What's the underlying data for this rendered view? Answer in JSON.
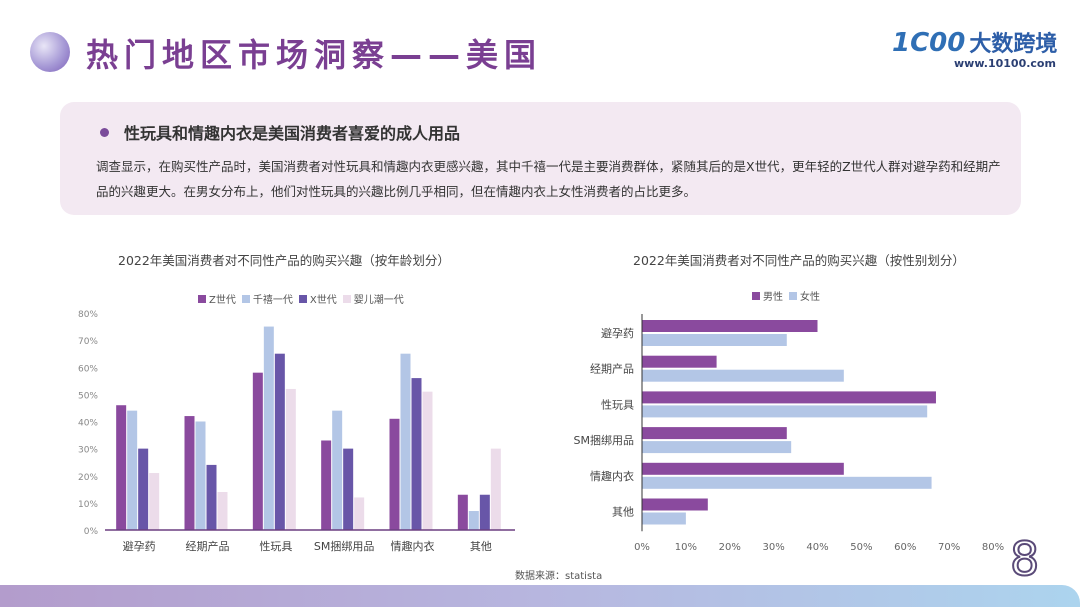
{
  "header": {
    "title": "热门地区市场洞察——美国",
    "logo_mark": "1C00",
    "logo_name": "大数跨境",
    "logo_url": "www.10100.com"
  },
  "insight": {
    "heading": "性玩具和情趣内衣是美国消费者喜爱的成人用品",
    "body": "调查显示，在购买性产品时，美国消费者对性玩具和情趣内衣更感兴趣，其中千禧一代是主要消费群体，紧随其后的是X世代，更年轻的Z世代人群对避孕药和经期产品的兴趣更大。在男女分布上，他们对性玩具的兴趣比例几乎相同，但在情趣内衣上女性消费者的占比更多。"
  },
  "chart_data": [
    {
      "type": "bar",
      "title": "2022年美国消费者对不同性产品的购买兴趣（按年龄划分）",
      "categories": [
        "避孕药",
        "经期产品",
        "性玩具",
        "SM捆绑用品",
        "情趣内衣",
        "其他"
      ],
      "series": [
        {
          "name": "Z世代",
          "color": "#8a4a9e",
          "values": [
            46,
            42,
            58,
            33,
            41,
            13
          ]
        },
        {
          "name": "千禧一代",
          "color": "#b3c6e6",
          "values": [
            44,
            40,
            75,
            44,
            65,
            7
          ]
        },
        {
          "name": "X世代",
          "color": "#6856a8",
          "values": [
            30,
            24,
            65,
            30,
            56,
            13
          ]
        },
        {
          "name": "婴儿潮一代",
          "color": "#ecdcea",
          "values": [
            21,
            14,
            52,
            12,
            51,
            30
          ]
        }
      ],
      "ylim": [
        0,
        80
      ],
      "yticks": [
        "0%",
        "10%",
        "20%",
        "30%",
        "40%",
        "50%",
        "60%",
        "70%",
        "80%"
      ],
      "legend": "top",
      "grid": false
    },
    {
      "type": "bar",
      "orientation": "horizontal",
      "title": "2022年美国消费者对不同性产品的购买兴趣（按性别划分）",
      "categories": [
        "避孕药",
        "经期产品",
        "性玩具",
        "SM捆绑用品",
        "情趣内衣",
        "其他"
      ],
      "series": [
        {
          "name": "男性",
          "color": "#8a4a9e",
          "values": [
            40,
            17,
            67,
            33,
            46,
            15
          ]
        },
        {
          "name": "女性",
          "color": "#b3c6e6",
          "values": [
            33,
            46,
            65,
            34,
            66,
            10
          ]
        }
      ],
      "xlim": [
        0,
        80
      ],
      "xticks": [
        "0%",
        "10%",
        "20%",
        "30%",
        "40%",
        "50%",
        "60%",
        "70%",
        "80%"
      ],
      "legend": "top",
      "grid": false
    }
  ],
  "source": "数据来源：statista",
  "page_number": "8"
}
